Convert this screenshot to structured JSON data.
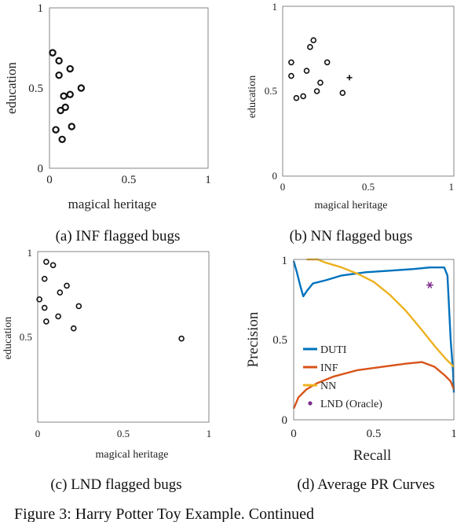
{
  "chart_data": [
    {
      "type": "scatter",
      "id": "a",
      "caption": "(a) INF flagged bugs",
      "xlabel": "magical heritage",
      "ylabel": "education",
      "xlim": [
        0,
        1
      ],
      "ylim": [
        0,
        1
      ],
      "xticks": [
        "0",
        "0.5",
        "1"
      ],
      "yticks": [
        "0",
        "0.5",
        "1"
      ],
      "series": [
        {
          "marker": "circle",
          "points": [
            [
              0.02,
              0.72
            ],
            [
              0.06,
              0.67
            ],
            [
              0.06,
              0.58
            ],
            [
              0.13,
              0.62
            ],
            [
              0.2,
              0.5
            ],
            [
              0.09,
              0.45
            ],
            [
              0.13,
              0.46
            ],
            [
              0.1,
              0.38
            ],
            [
              0.07,
              0.36
            ],
            [
              0.04,
              0.24
            ],
            [
              0.14,
              0.26
            ],
            [
              0.08,
              0.18
            ]
          ]
        }
      ]
    },
    {
      "type": "scatter",
      "id": "b",
      "caption": "(b) NN flagged bugs",
      "xlabel": "magical heritage",
      "ylabel": "education",
      "xlim": [
        0,
        1
      ],
      "ylim": [
        0,
        1
      ],
      "xticks": [
        "0",
        "0.5",
        "1"
      ],
      "yticks": [
        "0",
        "0.5",
        "1"
      ],
      "series": [
        {
          "marker": "circle",
          "points": [
            [
              0.05,
              0.67
            ],
            [
              0.05,
              0.59
            ],
            [
              0.14,
              0.62
            ],
            [
              0.16,
              0.76
            ],
            [
              0.18,
              0.8
            ],
            [
              0.26,
              0.67
            ],
            [
              0.22,
              0.55
            ],
            [
              0.2,
              0.5
            ],
            [
              0.12,
              0.47
            ],
            [
              0.08,
              0.46
            ],
            [
              0.35,
              0.49
            ]
          ]
        },
        {
          "marker": "plus",
          "points": [
            [
              0.39,
              0.58
            ]
          ]
        }
      ]
    },
    {
      "type": "scatter",
      "id": "c",
      "caption": "(c) LND flagged bugs",
      "xlabel": "magical heritage",
      "ylabel": "education",
      "xlim": [
        0,
        1
      ],
      "ylim": [
        0,
        1
      ],
      "xticks": [
        "0",
        "0.5",
        "1"
      ],
      "yticks": [
        "0.5",
        "1"
      ],
      "series": [
        {
          "marker": "circle",
          "points": [
            [
              0.05,
              0.94
            ],
            [
              0.09,
              0.92
            ],
            [
              0.04,
              0.84
            ],
            [
              0.17,
              0.8
            ],
            [
              0.13,
              0.76
            ],
            [
              0.01,
              0.72
            ],
            [
              0.04,
              0.67
            ],
            [
              0.24,
              0.68
            ],
            [
              0.12,
              0.62
            ],
            [
              0.05,
              0.59
            ],
            [
              0.21,
              0.55
            ],
            [
              0.84,
              0.49
            ]
          ]
        }
      ]
    },
    {
      "type": "line",
      "id": "d",
      "caption": "(d) Average PR Curves",
      "xlabel": "Recall",
      "ylabel": "Precision",
      "xlim": [
        0,
        1
      ],
      "ylim": [
        0,
        1
      ],
      "xticks": [
        "0",
        "0.5",
        "1"
      ],
      "yticks": [
        "0",
        "0.5",
        "1"
      ],
      "legend_position": "bottom-left",
      "series": [
        {
          "name": "DUTI",
          "color": "#0072bd",
          "points": [
            [
              0.0,
              0.99
            ],
            [
              0.02,
              0.92
            ],
            [
              0.04,
              0.84
            ],
            [
              0.06,
              0.77
            ],
            [
              0.08,
              0.8
            ],
            [
              0.12,
              0.85
            ],
            [
              0.2,
              0.87
            ],
            [
              0.3,
              0.9
            ],
            [
              0.45,
              0.92
            ],
            [
              0.6,
              0.93
            ],
            [
              0.75,
              0.94
            ],
            [
              0.85,
              0.95
            ],
            [
              0.94,
              0.95
            ],
            [
              0.96,
              0.9
            ],
            [
              0.98,
              0.5
            ],
            [
              0.995,
              0.3
            ],
            [
              1.0,
              0.17
            ]
          ]
        },
        {
          "name": "INF",
          "color": "#d95319",
          "points": [
            [
              0.0,
              0.07
            ],
            [
              0.03,
              0.14
            ],
            [
              0.08,
              0.19
            ],
            [
              0.15,
              0.23
            ],
            [
              0.25,
              0.27
            ],
            [
              0.4,
              0.31
            ],
            [
              0.55,
              0.33
            ],
            [
              0.7,
              0.35
            ],
            [
              0.8,
              0.36
            ],
            [
              0.88,
              0.33
            ],
            [
              0.94,
              0.28
            ],
            [
              0.98,
              0.24
            ],
            [
              1.0,
              0.19
            ]
          ]
        },
        {
          "name": "NN",
          "color": "#edb120",
          "points": [
            [
              0.08,
              1.0
            ],
            [
              0.15,
              1.0
            ],
            [
              0.2,
              0.98
            ],
            [
              0.3,
              0.95
            ],
            [
              0.4,
              0.91
            ],
            [
              0.5,
              0.86
            ],
            [
              0.6,
              0.78
            ],
            [
              0.7,
              0.68
            ],
            [
              0.8,
              0.56
            ],
            [
              0.88,
              0.46
            ],
            [
              0.95,
              0.38
            ],
            [
              1.0,
              0.33
            ]
          ]
        },
        {
          "name": "LND (Oracle)",
          "color": "#7e2f8e",
          "marker": "asterisk",
          "points": [
            [
              0.85,
              0.84
            ]
          ]
        }
      ]
    }
  ],
  "figure_caption": "Figure 3: Harry Potter Toy Example. Continued"
}
